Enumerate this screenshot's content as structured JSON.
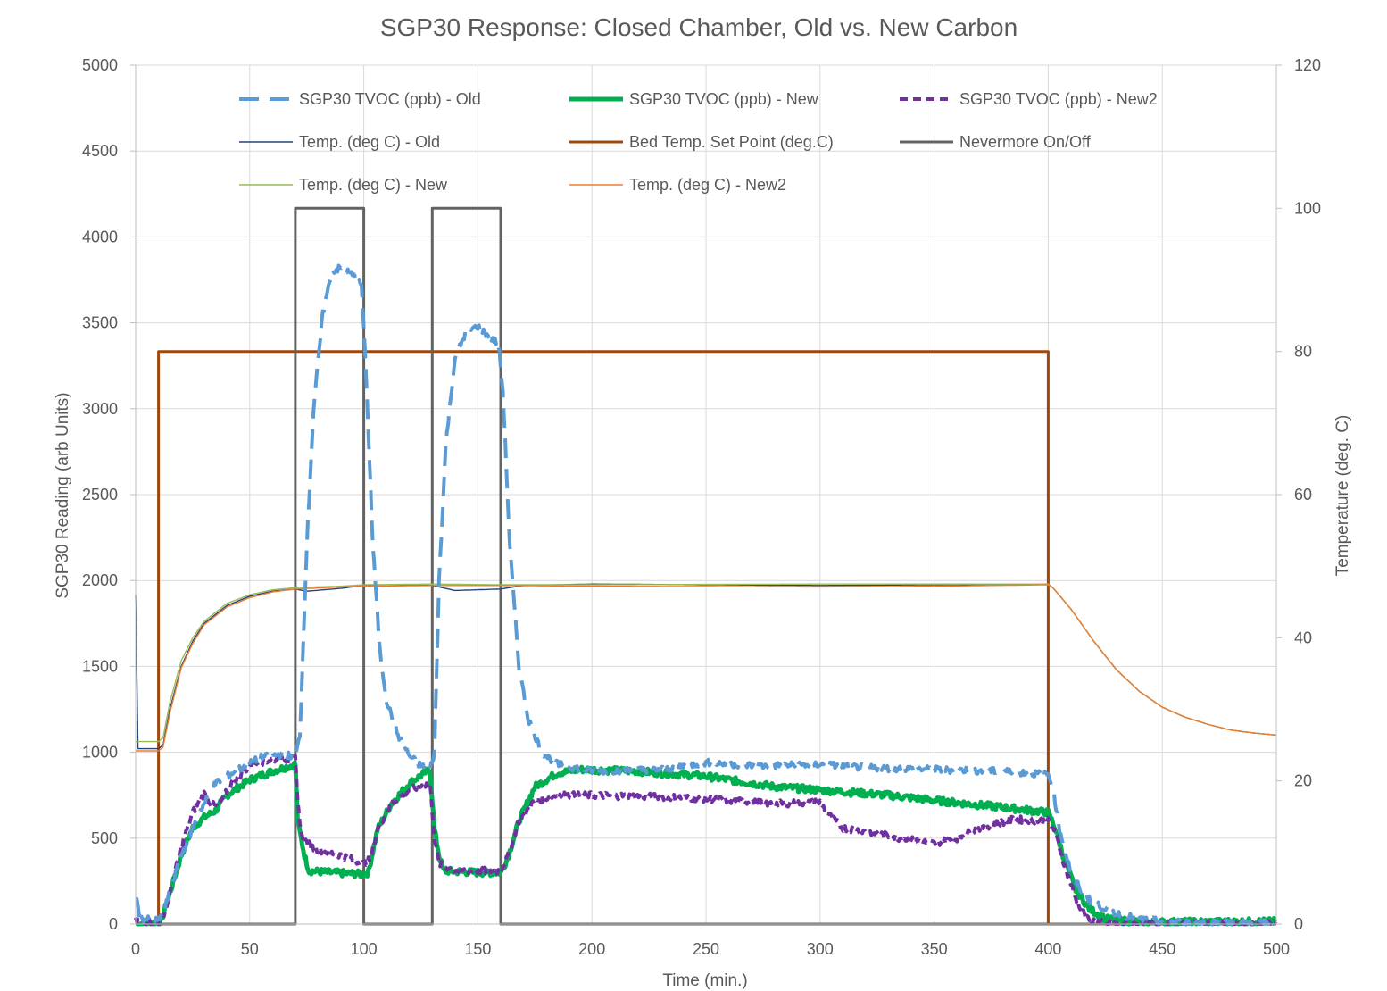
{
  "chart_data": {
    "type": "line",
    "title": "SGP30 Response: Closed Chamber, Old vs. New Carbon",
    "xlabel": "Time (min.)",
    "ylabel": "SGP30 Reading (arb Units)",
    "y2label": "Temperature (deg. C)",
    "xlim": [
      0,
      500
    ],
    "ylim": [
      0,
      5000
    ],
    "y2lim": [
      0,
      120
    ],
    "x_ticks": [
      "0",
      "50",
      "100",
      "150",
      "200",
      "250",
      "300",
      "350",
      "400",
      "450",
      "500"
    ],
    "y_ticks": [
      "0",
      "500",
      "1000",
      "1500",
      "2000",
      "2500",
      "3000",
      "3500",
      "4000",
      "4500",
      "5000"
    ],
    "y2_ticks": [
      "0",
      "20",
      "40",
      "60",
      "80",
      "100",
      "120"
    ],
    "grid": true,
    "legend_position": "top",
    "series": [
      {
        "name": "SGP30 TVOC (ppb) - Old",
        "axis": "left",
        "color": "#5B9BD5",
        "style": "dashed",
        "width": 4,
        "points": [
          [
            0,
            160
          ],
          [
            2,
            30
          ],
          [
            10,
            20
          ],
          [
            12,
            60
          ],
          [
            20,
            400
          ],
          [
            28,
            650
          ],
          [
            35,
            820
          ],
          [
            45,
            900
          ],
          [
            55,
            970
          ],
          [
            65,
            990
          ],
          [
            70,
            970
          ],
          [
            72,
            1100
          ],
          [
            75,
            2200
          ],
          [
            78,
            3000
          ],
          [
            82,
            3550
          ],
          [
            86,
            3800
          ],
          [
            90,
            3820
          ],
          [
            95,
            3780
          ],
          [
            99,
            3720
          ],
          [
            101,
            3200
          ],
          [
            104,
            2200
          ],
          [
            107,
            1600
          ],
          [
            110,
            1300
          ],
          [
            115,
            1100
          ],
          [
            120,
            980
          ],
          [
            125,
            920
          ],
          [
            129,
            900
          ],
          [
            131,
            1000
          ],
          [
            133,
            2000
          ],
          [
            136,
            2800
          ],
          [
            140,
            3300
          ],
          [
            145,
            3450
          ],
          [
            150,
            3480
          ],
          [
            155,
            3420
          ],
          [
            159,
            3380
          ],
          [
            161,
            3100
          ],
          [
            164,
            2200
          ],
          [
            168,
            1500
          ],
          [
            172,
            1200
          ],
          [
            178,
            1000
          ],
          [
            185,
            930
          ],
          [
            200,
            890
          ],
          [
            230,
            900
          ],
          [
            250,
            940
          ],
          [
            275,
            920
          ],
          [
            300,
            930
          ],
          [
            320,
            910
          ],
          [
            350,
            900
          ],
          [
            380,
            890
          ],
          [
            400,
            870
          ],
          [
            402,
            800
          ],
          [
            405,
            550
          ],
          [
            410,
            300
          ],
          [
            415,
            180
          ],
          [
            420,
            120
          ],
          [
            430,
            60
          ],
          [
            440,
            30
          ],
          [
            450,
            15
          ],
          [
            460,
            10
          ],
          [
            500,
            5
          ]
        ]
      },
      {
        "name": "SGP30 TVOC (ppb) - New",
        "axis": "left",
        "color": "#00B050",
        "style": "solid",
        "width": 5,
        "points": [
          [
            0,
            0
          ],
          [
            11,
            10
          ],
          [
            15,
            180
          ],
          [
            20,
            400
          ],
          [
            25,
            560
          ],
          [
            30,
            620
          ],
          [
            35,
            660
          ],
          [
            40,
            750
          ],
          [
            50,
            840
          ],
          [
            60,
            890
          ],
          [
            70,
            930
          ],
          [
            71,
            600
          ],
          [
            74,
            400
          ],
          [
            76,
            310
          ],
          [
            85,
            300
          ],
          [
            100,
            290
          ],
          [
            102,
            300
          ],
          [
            106,
            550
          ],
          [
            112,
            700
          ],
          [
            120,
            820
          ],
          [
            129,
            900
          ],
          [
            131,
            550
          ],
          [
            133,
            400
          ],
          [
            135,
            310
          ],
          [
            150,
            300
          ],
          [
            160,
            300
          ],
          [
            163,
            380
          ],
          [
            168,
            600
          ],
          [
            175,
            800
          ],
          [
            185,
            880
          ],
          [
            195,
            900
          ],
          [
            220,
            890
          ],
          [
            250,
            860
          ],
          [
            280,
            800
          ],
          [
            300,
            780
          ],
          [
            330,
            750
          ],
          [
            350,
            720
          ],
          [
            380,
            680
          ],
          [
            400,
            650
          ],
          [
            403,
            560
          ],
          [
            407,
            380
          ],
          [
            412,
            200
          ],
          [
            418,
            90
          ],
          [
            425,
            30
          ],
          [
            440,
            10
          ],
          [
            500,
            15
          ]
        ]
      },
      {
        "name": "SGP30 TVOC (ppb) - New2",
        "axis": "left",
        "color": "#7030A0",
        "style": "dashed",
        "width": 4,
        "points": [
          [
            0,
            20
          ],
          [
            11,
            10
          ],
          [
            14,
            120
          ],
          [
            20,
            450
          ],
          [
            25,
            650
          ],
          [
            30,
            760
          ],
          [
            33,
            700
          ],
          [
            36,
            680
          ],
          [
            42,
            820
          ],
          [
            50,
            920
          ],
          [
            60,
            960
          ],
          [
            70,
            960
          ],
          [
            71,
            700
          ],
          [
            73,
            500
          ],
          [
            78,
            440
          ],
          [
            90,
            400
          ],
          [
            100,
            350
          ],
          [
            103,
            380
          ],
          [
            106,
            550
          ],
          [
            112,
            700
          ],
          [
            120,
            780
          ],
          [
            129,
            820
          ],
          [
            131,
            500
          ],
          [
            133,
            350
          ],
          [
            140,
            310
          ],
          [
            160,
            310
          ],
          [
            163,
            390
          ],
          [
            168,
            600
          ],
          [
            175,
            720
          ],
          [
            185,
            750
          ],
          [
            200,
            750
          ],
          [
            230,
            740
          ],
          [
            250,
            730
          ],
          [
            280,
            700
          ],
          [
            300,
            710
          ],
          [
            305,
            620
          ],
          [
            310,
            560
          ],
          [
            320,
            540
          ],
          [
            335,
            500
          ],
          [
            350,
            470
          ],
          [
            360,
            500
          ],
          [
            370,
            560
          ],
          [
            385,
            610
          ],
          [
            400,
            600
          ],
          [
            403,
            540
          ],
          [
            407,
            350
          ],
          [
            412,
            150
          ],
          [
            417,
            30
          ],
          [
            425,
            0
          ],
          [
            500,
            0
          ]
        ]
      },
      {
        "name": "Temp. (deg C) - Old",
        "axis": "right",
        "color": "#264478",
        "style": "solid",
        "width": 1.4,
        "points": [
          [
            0,
            46
          ],
          [
            1,
            24.5
          ],
          [
            10,
            24.5
          ],
          [
            12,
            25
          ],
          [
            15,
            30
          ],
          [
            20,
            36
          ],
          [
            25,
            39.5
          ],
          [
            30,
            42
          ],
          [
            40,
            44.5
          ],
          [
            50,
            45.8
          ],
          [
            60,
            46.5
          ],
          [
            70,
            46.8
          ],
          [
            75,
            46.5
          ],
          [
            90,
            46.9
          ],
          [
            100,
            47.3
          ],
          [
            110,
            47.2
          ],
          [
            120,
            47.4
          ],
          [
            130,
            47.3
          ],
          [
            140,
            46.6
          ],
          [
            160,
            46.8
          ],
          [
            170,
            47.3
          ],
          [
            200,
            47.5
          ],
          [
            300,
            47.3
          ],
          [
            400,
            47.5
          ],
          [
            402,
            47
          ],
          [
            410,
            44
          ],
          [
            420,
            39.5
          ],
          [
            430,
            35.5
          ],
          [
            440,
            32.5
          ],
          [
            450,
            30.3
          ],
          [
            460,
            28.9
          ],
          [
            470,
            27.9
          ],
          [
            480,
            27.1
          ],
          [
            490,
            26.7
          ],
          [
            500,
            26.4
          ]
        ]
      },
      {
        "name": "Bed Temp. Set Point (deg.C)",
        "axis": "right",
        "color": "#9E480E",
        "style": "solid",
        "width": 3,
        "points": [
          [
            10,
            0
          ],
          [
            10,
            80
          ],
          [
            400,
            80
          ],
          [
            400,
            0
          ]
        ]
      },
      {
        "name": "Nevermore On/Off",
        "axis": "right",
        "color": "#636363",
        "style": "solid",
        "width": 3,
        "points": [
          [
            0,
            0
          ],
          [
            70,
            0
          ],
          [
            70,
            100
          ],
          [
            100,
            100
          ],
          [
            100,
            0
          ],
          [
            130,
            0
          ],
          [
            130,
            100
          ],
          [
            160,
            100
          ],
          [
            160,
            0
          ],
          [
            500,
            0
          ]
        ]
      },
      {
        "name": "Temp. (deg C) - New",
        "axis": "right",
        "color": "#9BBB59",
        "style": "solid",
        "width": 1.4,
        "points": [
          [
            0,
            25.5
          ],
          [
            10,
            25.5
          ],
          [
            12,
            26
          ],
          [
            15,
            31
          ],
          [
            20,
            36.8
          ],
          [
            25,
            40
          ],
          [
            30,
            42.3
          ],
          [
            40,
            44.8
          ],
          [
            50,
            46
          ],
          [
            60,
            46.7
          ],
          [
            70,
            47
          ],
          [
            90,
            47.2
          ],
          [
            100,
            47.4
          ],
          [
            130,
            47.5
          ],
          [
            160,
            47.4
          ],
          [
            200,
            47.4
          ],
          [
            300,
            47.5
          ],
          [
            400,
            47.5
          ],
          [
            402,
            47
          ],
          [
            410,
            44
          ],
          [
            420,
            39.5
          ],
          [
            430,
            35.5
          ],
          [
            440,
            32.5
          ],
          [
            450,
            30.3
          ],
          [
            460,
            28.9
          ],
          [
            470,
            27.9
          ],
          [
            480,
            27.1
          ],
          [
            490,
            26.7
          ],
          [
            500,
            26.4
          ]
        ]
      },
      {
        "name": "Temp. (deg C) - New2",
        "axis": "right",
        "color": "#ED7D31",
        "style": "solid",
        "width": 1.4,
        "points": [
          [
            0,
            24.2
          ],
          [
            10,
            24.2
          ],
          [
            12,
            24.7
          ],
          [
            15,
            29.5
          ],
          [
            20,
            35.8
          ],
          [
            25,
            39.2
          ],
          [
            30,
            41.8
          ],
          [
            40,
            44.3
          ],
          [
            50,
            45.6
          ],
          [
            60,
            46.4
          ],
          [
            70,
            46.8
          ],
          [
            90,
            47.1
          ],
          [
            100,
            47.2
          ],
          [
            130,
            47.3
          ],
          [
            160,
            47.3
          ],
          [
            200,
            47.2
          ],
          [
            300,
            47.1
          ],
          [
            350,
            47.2
          ],
          [
            400,
            47.4
          ],
          [
            402,
            47
          ],
          [
            410,
            44
          ],
          [
            420,
            39.5
          ],
          [
            430,
            35.5
          ],
          [
            440,
            32.5
          ],
          [
            450,
            30.3
          ],
          [
            460,
            28.9
          ],
          [
            470,
            27.9
          ],
          [
            480,
            27.1
          ],
          [
            490,
            26.7
          ],
          [
            500,
            26.4
          ]
        ]
      }
    ]
  }
}
